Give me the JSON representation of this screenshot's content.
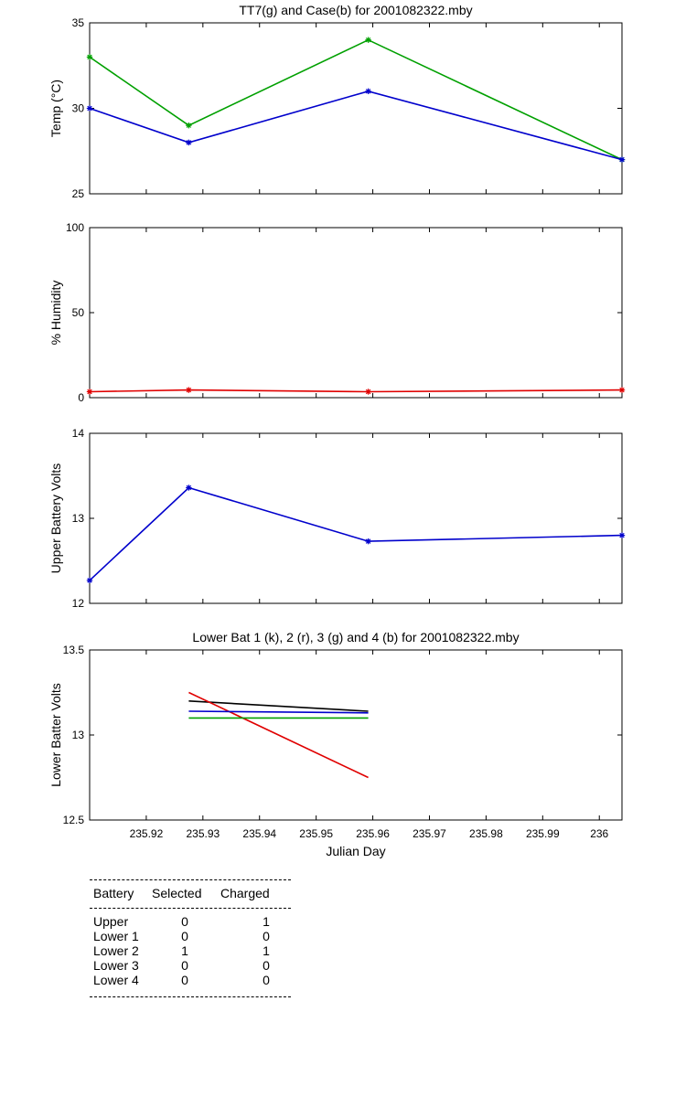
{
  "chart_data": [
    {
      "type": "line",
      "title": "TT7(g) and Case(b) for 2001082322.mby",
      "xlabel": "",
      "ylabel": "Temp  (°C)",
      "xlim": [
        235.91,
        236.004
      ],
      "ylim": [
        25,
        35
      ],
      "yticks": [
        25,
        30,
        35
      ],
      "show_xticklabels": false,
      "series": [
        {
          "color": "#00a000",
          "x": [
            235.91,
            235.9275,
            235.9592,
            236.004
          ],
          "y": [
            33,
            29,
            34,
            27
          ],
          "markers": true
        },
        {
          "color": "#0000cc",
          "x": [
            235.91,
            235.9275,
            235.9592,
            236.004
          ],
          "y": [
            30,
            28,
            31,
            27
          ],
          "markers": true
        }
      ]
    },
    {
      "type": "line",
      "title": "",
      "xlabel": "",
      "ylabel": "% Humidity",
      "xlim": [
        235.91,
        236.004
      ],
      "ylim": [
        0,
        100
      ],
      "yticks": [
        0,
        50,
        100
      ],
      "show_xticklabels": false,
      "series": [
        {
          "color": "#e00000",
          "x": [
            235.91,
            235.9275,
            235.9592,
            236.004
          ],
          "y": [
            3.5,
            4.5,
            3.5,
            4.5
          ],
          "markers": true
        }
      ]
    },
    {
      "type": "line",
      "title": "",
      "xlabel": "",
      "ylabel": "Upper Battery Volts",
      "xlim": [
        235.91,
        236.004
      ],
      "ylim": [
        12,
        14
      ],
      "yticks": [
        12,
        13,
        14
      ],
      "show_xticklabels": false,
      "series": [
        {
          "color": "#0000cc",
          "x": [
            235.91,
            235.9275,
            235.9592,
            236.004
          ],
          "y": [
            12.27,
            13.36,
            12.73,
            12.8
          ],
          "markers": true
        }
      ]
    },
    {
      "type": "line",
      "title": "Lower Bat 1 (k), 2 (r), 3 (g) and 4 (b) for 2001082322.mby",
      "xlabel": "Julian Day",
      "ylabel": "Lower Batter Volts",
      "xlim": [
        235.91,
        236.004
      ],
      "ylim": [
        12.5,
        13.5
      ],
      "yticks": [
        "12.5",
        "13",
        "13.5"
      ],
      "xticks": [
        "235.92",
        "235.93",
        "235.94",
        "235.95",
        "235.96",
        "235.97",
        "235.98",
        "235.99",
        "236"
      ],
      "show_xticklabels": true,
      "series": [
        {
          "color": "#000000",
          "x": [
            235.9275,
            235.9592
          ],
          "y": [
            13.2,
            13.14
          ],
          "markers": false
        },
        {
          "color": "#e00000",
          "x": [
            235.9275,
            235.9592
          ],
          "y": [
            13.25,
            12.75
          ],
          "markers": false
        },
        {
          "color": "#00a000",
          "x": [
            235.9275,
            235.9592
          ],
          "y": [
            13.1,
            13.1
          ],
          "markers": false
        },
        {
          "color": "#0000cc",
          "x": [
            235.9275,
            235.9592
          ],
          "y": [
            13.14,
            13.13
          ],
          "markers": false
        }
      ]
    }
  ],
  "battery_table": {
    "headers": [
      "Battery",
      "Selected",
      "Charged"
    ],
    "rows": [
      {
        "battery": "Upper",
        "selected": "0",
        "charged": "1"
      },
      {
        "battery": "Lower 1",
        "selected": "0",
        "charged": "0"
      },
      {
        "battery": "Lower 2",
        "selected": "1",
        "charged": "1"
      },
      {
        "battery": "Lower 3",
        "selected": "0",
        "charged": "0"
      },
      {
        "battery": "Lower 4",
        "selected": "0",
        "charged": "0"
      }
    ]
  }
}
